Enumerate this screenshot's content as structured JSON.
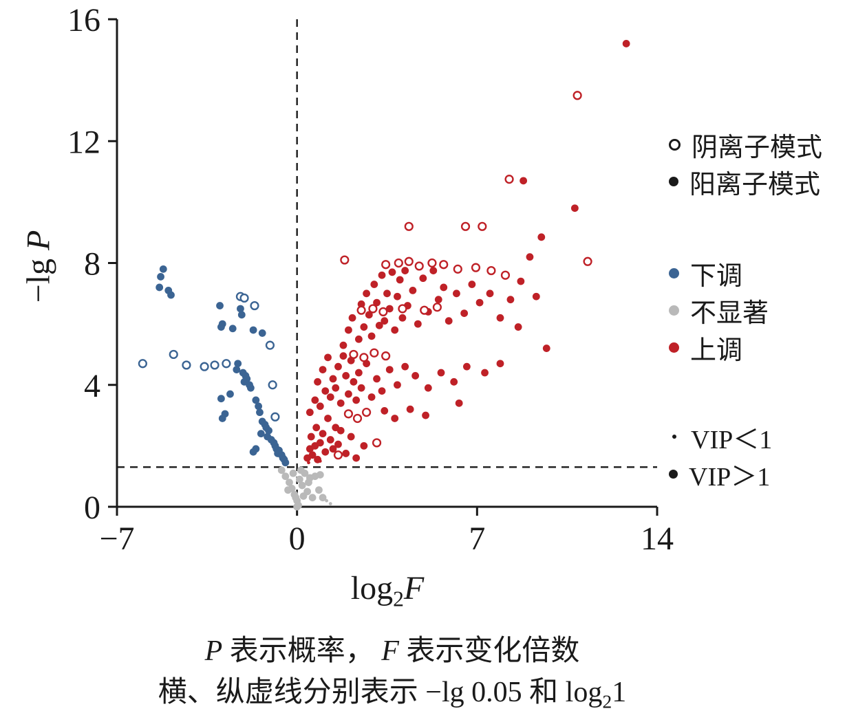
{
  "chart_data": {
    "type": "scatter",
    "xlabel": "log2F",
    "ylabel": "-lg P",
    "xlim": [
      -7,
      14
    ],
    "ylim": [
      0,
      16
    ],
    "xticks": [
      -7,
      0,
      7,
      14
    ],
    "xtick_labels": [
      "−7",
      "0",
      "7",
      "14"
    ],
    "yticks": [
      0,
      4,
      8,
      12,
      16
    ],
    "ytick_labels": [
      "0",
      "4",
      "8",
      "12",
      "16"
    ],
    "hline_y": 1.301,
    "vline_x": 0,
    "grid": false,
    "legend_position": "right",
    "colors": {
      "down": "#3b6493",
      "ns": "#b9b9b9",
      "up": "#bf2127",
      "axis": "#1a1a1a"
    },
    "series": [
      {
        "name": "不显著",
        "color": "#b9b9b9",
        "marker": "filled",
        "points": [
          [
            -0.6,
            1.2
          ],
          [
            -0.45,
            1.0
          ],
          [
            -0.3,
            0.8
          ],
          [
            -0.2,
            0.6
          ],
          [
            -0.1,
            0.4
          ],
          [
            0.0,
            0.2
          ],
          [
            0.1,
            0.9
          ],
          [
            0.2,
            0.7
          ],
          [
            0.3,
            1.1
          ],
          [
            0.5,
            0.95
          ],
          [
            0.7,
            1.0
          ],
          [
            0.9,
            1.05
          ],
          [
            0.05,
            0.05
          ],
          [
            -0.05,
            0.3
          ],
          [
            0.4,
            0.5
          ],
          [
            0.6,
            0.3
          ],
          [
            -0.15,
            1.1
          ],
          [
            0.15,
            1.2
          ],
          [
            1.0,
            0.3
          ],
          [
            0.25,
            0.35
          ],
          [
            -0.35,
            0.55
          ],
          [
            0.45,
            0.8
          ],
          [
            0.85,
            0.55
          ],
          [
            1.15,
            0.2,
            1
          ],
          [
            1.3,
            0.1,
            1
          ],
          [
            0.0,
            0.0
          ]
        ]
      },
      {
        "name": "下调·阳离子模式",
        "color": "#3b6493",
        "marker": "filled",
        "points": [
          [
            -5.2,
            7.8
          ],
          [
            -5.3,
            7.55
          ],
          [
            -5.35,
            7.2
          ],
          [
            -5.0,
            7.1
          ],
          [
            -4.9,
            6.95
          ],
          [
            -3.0,
            6.6
          ],
          [
            -2.2,
            6.5
          ],
          [
            -2.15,
            6.3
          ],
          [
            -2.9,
            6.0
          ],
          [
            -2.95,
            5.9
          ],
          [
            -2.5,
            5.85
          ],
          [
            -1.7,
            5.8
          ],
          [
            -1.35,
            5.7
          ],
          [
            -2.3,
            4.7
          ],
          [
            -2.35,
            4.5
          ],
          [
            -2.1,
            4.4
          ],
          [
            -2.0,
            4.3
          ],
          [
            -1.95,
            4.2
          ],
          [
            -2.05,
            4.1
          ],
          [
            -1.85,
            4.0
          ],
          [
            -1.8,
            3.9
          ],
          [
            -2.6,
            3.7
          ],
          [
            -2.95,
            3.55
          ],
          [
            -1.6,
            3.5
          ],
          [
            -1.5,
            3.3
          ],
          [
            -1.45,
            3.1
          ],
          [
            -2.8,
            3.05
          ],
          [
            -2.9,
            2.9
          ],
          [
            -1.35,
            2.8
          ],
          [
            -1.25,
            2.7
          ],
          [
            -1.2,
            2.6
          ],
          [
            -1.1,
            2.5
          ],
          [
            -1.4,
            2.4
          ],
          [
            -1.15,
            2.3
          ],
          [
            -1.0,
            2.2
          ],
          [
            -0.9,
            2.1
          ],
          [
            -0.85,
            2.0
          ],
          [
            -0.8,
            1.9
          ],
          [
            -0.7,
            1.85
          ],
          [
            -0.75,
            1.75
          ],
          [
            -0.6,
            1.7
          ],
          [
            -0.55,
            1.6
          ],
          [
            -0.5,
            1.55
          ],
          [
            -1.6,
            1.9
          ],
          [
            -1.7,
            1.8
          ],
          [
            -0.45,
            1.45
          ]
        ]
      },
      {
        "name": "下调·阴离子模式",
        "color": "#3b6493",
        "marker": "open",
        "points": [
          [
            -6.0,
            4.7
          ],
          [
            -4.8,
            5.0
          ],
          [
            -4.3,
            4.65
          ],
          [
            -3.6,
            4.6
          ],
          [
            -3.2,
            4.65
          ],
          [
            -2.75,
            4.7
          ],
          [
            -2.2,
            6.9
          ],
          [
            -2.05,
            6.85
          ],
          [
            -1.65,
            6.6
          ],
          [
            -1.05,
            5.3
          ],
          [
            -0.95,
            4.0
          ],
          [
            -0.85,
            2.95
          ]
        ]
      },
      {
        "name": "上调·阳离子模式",
        "color": "#bf2127",
        "marker": "filled",
        "points": [
          [
            0.4,
            1.6
          ],
          [
            0.5,
            1.9
          ],
          [
            0.55,
            2.3
          ],
          [
            0.6,
            1.7
          ],
          [
            0.7,
            2.0
          ],
          [
            0.75,
            2.6
          ],
          [
            0.8,
            1.55
          ],
          [
            0.9,
            2.1
          ],
          [
            1.0,
            2.4
          ],
          [
            1.1,
            1.8
          ],
          [
            1.2,
            2.9
          ],
          [
            1.3,
            2.2
          ],
          [
            1.4,
            1.9
          ],
          [
            1.5,
            2.6
          ],
          [
            1.6,
            2.05
          ],
          [
            1.7,
            2.5
          ],
          [
            1.9,
            1.75
          ],
          [
            2.1,
            2.3
          ],
          [
            2.3,
            1.6
          ],
          [
            2.6,
            2.0
          ],
          [
            0.45,
            1.45,
            1
          ],
          [
            0.9,
            1.5,
            1
          ],
          [
            0.5,
            3.1
          ],
          [
            0.7,
            3.5
          ],
          [
            0.8,
            4.1
          ],
          [
            0.9,
            3.3
          ],
          [
            1.0,
            4.5
          ],
          [
            1.1,
            3.8
          ],
          [
            1.2,
            4.9
          ],
          [
            1.3,
            3.6
          ],
          [
            1.4,
            4.2
          ],
          [
            1.5,
            3.9
          ],
          [
            1.6,
            4.6
          ],
          [
            1.7,
            3.4
          ],
          [
            1.8,
            4.95
          ],
          [
            1.9,
            4.3
          ],
          [
            2.0,
            3.7
          ],
          [
            2.1,
            4.8
          ],
          [
            2.2,
            4.1
          ],
          [
            2.3,
            3.5
          ],
          [
            2.4,
            4.4
          ],
          [
            2.5,
            3.9
          ],
          [
            2.7,
            4.7
          ],
          [
            2.9,
            3.6
          ],
          [
            3.1,
            4.2
          ],
          [
            3.3,
            3.8
          ],
          [
            3.6,
            4.5
          ],
          [
            3.9,
            4.0
          ],
          [
            4.2,
            4.6
          ],
          [
            4.6,
            4.3
          ],
          [
            5.1,
            3.9
          ],
          [
            5.6,
            4.4
          ],
          [
            6.1,
            4.1
          ],
          [
            6.6,
            4.6
          ],
          [
            7.3,
            4.4
          ],
          [
            7.9,
            4.7
          ],
          [
            4.4,
            3.2
          ],
          [
            5.0,
            3.0
          ],
          [
            6.3,
            3.4
          ],
          [
            3.8,
            2.9
          ],
          [
            3.4,
            3.15
          ],
          [
            1.8,
            5.3
          ],
          [
            2.0,
            5.8
          ],
          [
            2.15,
            6.2
          ],
          [
            2.4,
            5.5
          ],
          [
            2.5,
            6.65
          ],
          [
            2.6,
            5.9
          ],
          [
            2.7,
            7.0
          ],
          [
            2.8,
            6.3
          ],
          [
            2.9,
            5.6
          ],
          [
            3.0,
            7.3
          ],
          [
            3.1,
            6.7
          ],
          [
            3.2,
            5.95
          ],
          [
            3.3,
            7.6
          ],
          [
            3.4,
            6.1
          ],
          [
            3.5,
            7.0
          ],
          [
            3.6,
            6.5
          ],
          [
            3.7,
            7.7
          ],
          [
            3.8,
            5.8
          ],
          [
            3.9,
            6.9
          ],
          [
            4.0,
            7.45
          ],
          [
            4.1,
            6.2
          ],
          [
            4.2,
            7.75
          ],
          [
            4.3,
            6.6
          ],
          [
            4.5,
            7.1
          ],
          [
            4.7,
            6.0
          ],
          [
            4.9,
            7.5
          ],
          [
            5.1,
            6.4
          ],
          [
            5.3,
            7.75
          ],
          [
            5.5,
            6.8
          ],
          [
            5.7,
            7.2
          ],
          [
            5.9,
            6.1
          ],
          [
            6.2,
            7.0
          ],
          [
            6.5,
            6.35
          ],
          [
            6.8,
            7.3
          ],
          [
            7.1,
            6.7
          ],
          [
            7.5,
            7.0
          ],
          [
            7.9,
            6.2
          ],
          [
            8.3,
            6.8
          ],
          [
            8.7,
            7.4
          ],
          [
            9.3,
            6.9
          ],
          [
            8.6,
            5.9
          ],
          [
            9.7,
            5.2
          ],
          [
            12.8,
            15.2
          ],
          [
            10.8,
            9.8
          ],
          [
            8.8,
            10.7
          ],
          [
            9.5,
            8.85
          ],
          [
            9.05,
            8.2
          ]
        ]
      },
      {
        "name": "上调·阴离子模式",
        "color": "#bf2127",
        "marker": "open",
        "points": [
          [
            1.85,
            8.1
          ],
          [
            3.45,
            7.95
          ],
          [
            3.95,
            8.0
          ],
          [
            4.35,
            8.05
          ],
          [
            4.75,
            7.9
          ],
          [
            5.25,
            8.0
          ],
          [
            5.7,
            7.95
          ],
          [
            2.5,
            6.45
          ],
          [
            2.95,
            6.5
          ],
          [
            3.35,
            6.4
          ],
          [
            4.1,
            6.5
          ],
          [
            4.95,
            6.45
          ],
          [
            5.45,
            6.55
          ],
          [
            2.2,
            5.0
          ],
          [
            2.6,
            4.9
          ],
          [
            3.0,
            5.05
          ],
          [
            3.45,
            4.95
          ],
          [
            2.0,
            3.05
          ],
          [
            2.35,
            2.9
          ],
          [
            2.7,
            3.1
          ],
          [
            6.25,
            7.8
          ],
          [
            6.95,
            7.85
          ],
          [
            7.55,
            7.75
          ],
          [
            8.1,
            7.6
          ],
          [
            4.35,
            9.2
          ],
          [
            6.55,
            9.2
          ],
          [
            7.2,
            9.2
          ],
          [
            8.25,
            10.75
          ],
          [
            10.9,
            13.5
          ],
          [
            11.3,
            8.05
          ],
          [
            3.1,
            2.1
          ],
          [
            1.6,
            1.7
          ]
        ]
      }
    ]
  },
  "legend": {
    "mode": [
      {
        "label": "阴离子模式"
      },
      {
        "label": "阳离子模式"
      }
    ],
    "color": [
      {
        "label": "下调",
        "color": "#3b6493"
      },
      {
        "label": "不显著",
        "color": "#b9b9b9"
      },
      {
        "label": "上调",
        "color": "#bf2127"
      }
    ],
    "vip": [
      {
        "label": "VIP＜1"
      },
      {
        "label": "VIP＞1"
      }
    ]
  },
  "xlabel": {
    "log": "log",
    "sub": "2",
    "f": "F"
  },
  "ylabel": {
    "prefix": "−lg ",
    "p": "P"
  },
  "caption": {
    "p": "P",
    "line1a": " 表示概率， ",
    "f": "F",
    "line1b": " 表示变化倍数",
    "line2a": "横、纵虚线分别表示 −lg 0.05 和 log",
    "sub2": "2",
    "line2b": "1"
  }
}
